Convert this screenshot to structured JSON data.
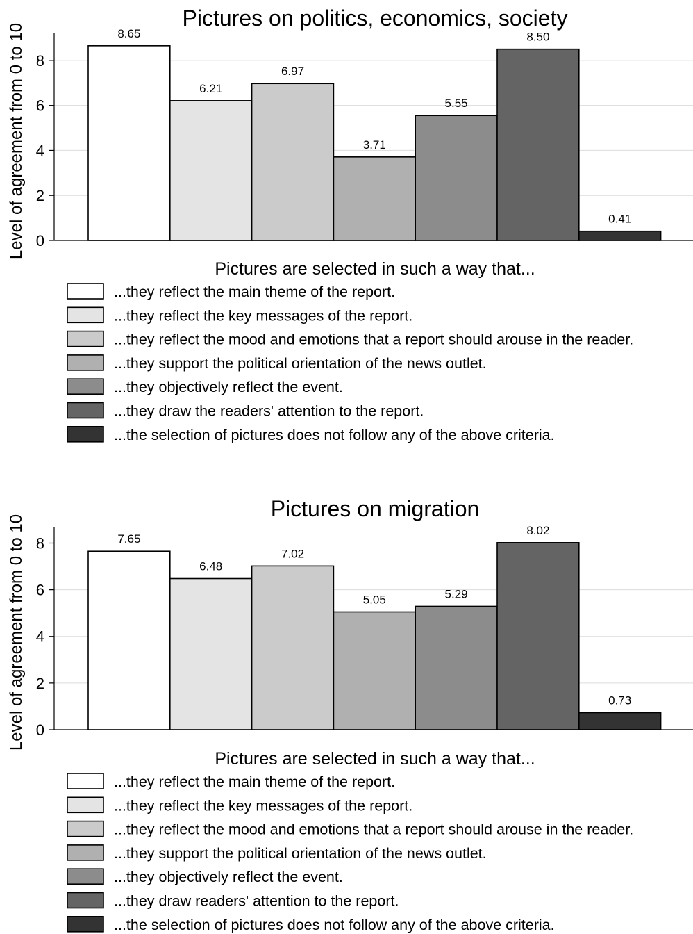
{
  "legend_colors": [
    "#ffffff",
    "#e4e4e4",
    "#cbcbcb",
    "#b0b0b0",
    "#8c8c8c",
    "#646464",
    "#333333"
  ],
  "chart_data": [
    {
      "type": "bar",
      "title": "Pictures on politics, economics, society",
      "ylabel": "Level of agreement from 0 to 10",
      "ylim": [
        0,
        9.2
      ],
      "yticks": [
        0,
        2,
        4,
        6,
        8
      ],
      "grid": true,
      "legend_title": "Pictures are selected in such a way that...",
      "legend_position": "bottom",
      "series": [
        {
          "name": "...they reflect the main theme of the report.",
          "value": 8.65,
          "label": "8.65",
          "color": "#ffffff"
        },
        {
          "name": "...they reflect the key messages of the report.",
          "value": 6.21,
          "label": "6.21",
          "color": "#e4e4e4"
        },
        {
          "name": "...they reflect the mood and emotions that a report should arouse in the reader.",
          "value": 6.97,
          "label": "6.97",
          "color": "#cbcbcb"
        },
        {
          "name": "...they support the political orientation of the news outlet.",
          "value": 3.71,
          "label": "3.71",
          "color": "#b0b0b0"
        },
        {
          "name": "...they objectively reflect the event.",
          "value": 5.55,
          "label": "5.55",
          "color": "#8c8c8c"
        },
        {
          "name": "...they draw the readers' attention to the report.",
          "value": 8.5,
          "label": "8.50",
          "color": "#646464"
        },
        {
          "name": "...the selection of pictures does not follow any of the above criteria.",
          "value": 0.41,
          "label": "0.41",
          "color": "#333333"
        }
      ]
    },
    {
      "type": "bar",
      "title": "Pictures on migration",
      "ylabel": "Level of agreement from 0 to 10",
      "ylim": [
        0,
        8.7
      ],
      "yticks": [
        0,
        2,
        4,
        6,
        8
      ],
      "grid": true,
      "legend_title": "Pictures are selected in such a way that...",
      "legend_position": "bottom",
      "series": [
        {
          "name": "...they reflect the main theme of the report.",
          "value": 7.65,
          "label": "7.65",
          "color": "#ffffff"
        },
        {
          "name": "...they reflect the key messages of the report.",
          "value": 6.48,
          "label": "6.48",
          "color": "#e4e4e4"
        },
        {
          "name": "...they reflect the mood and emotions that a report should arouse in the reader.",
          "value": 7.02,
          "label": "7.02",
          "color": "#cbcbcb"
        },
        {
          "name": "...they support the political orientation of the news outlet.",
          "value": 5.05,
          "label": "5.05",
          "color": "#b0b0b0"
        },
        {
          "name": "...they objectively reflect the event.",
          "value": 5.29,
          "label": "5.29",
          "color": "#8c8c8c"
        },
        {
          "name": "...they draw readers' attention to the report.",
          "value": 8.02,
          "label": "8.02",
          "color": "#646464"
        },
        {
          "name": "...the selection of pictures does not follow any of the above criteria.",
          "value": 0.73,
          "label": "0.73",
          "color": "#333333"
        }
      ]
    }
  ]
}
